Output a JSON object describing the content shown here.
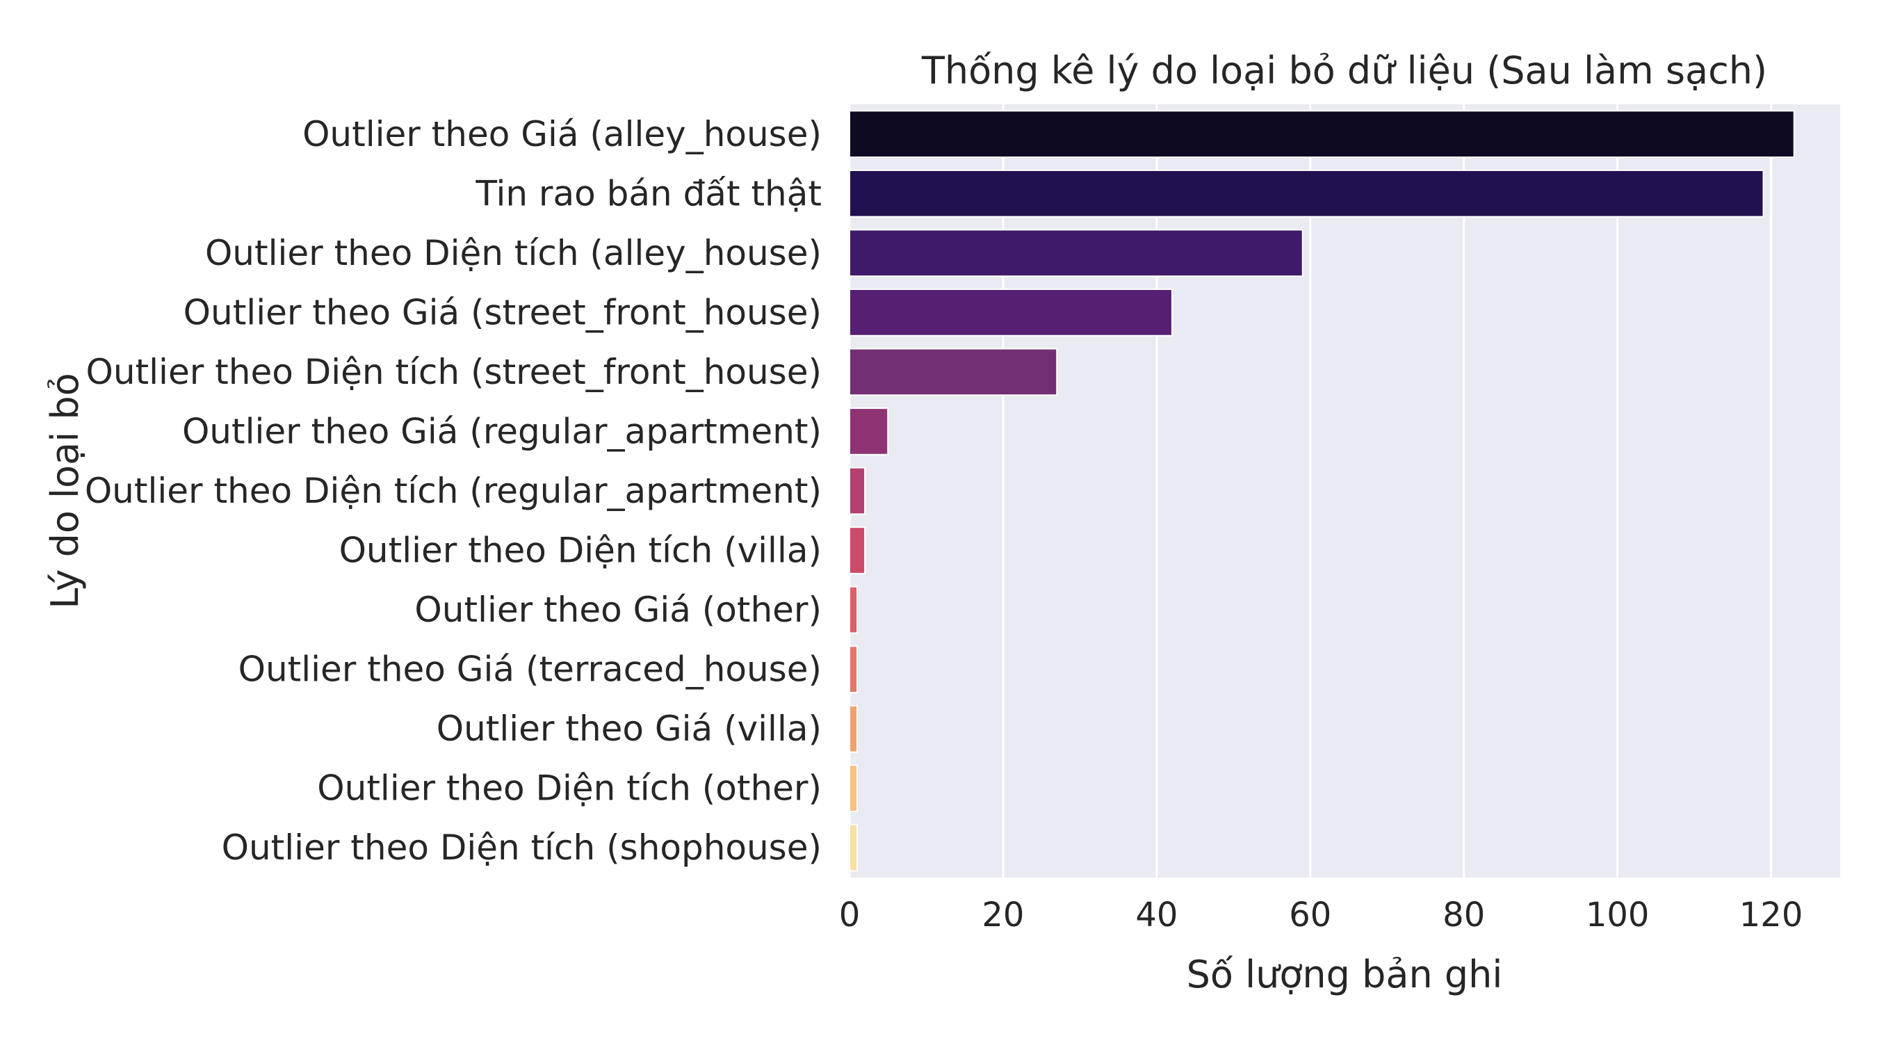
{
  "chart_data": {
    "type": "bar",
    "orientation": "horizontal",
    "title": "Thống kê lý do loại bỏ dữ liệu (Sau làm sạch)",
    "xlabel": "Số lượng bản ghi",
    "ylabel": "Lý do loại bỏ",
    "xlim": [
      0,
      129
    ],
    "xticks": [
      0,
      20,
      40,
      60,
      80,
      100,
      120
    ],
    "grid": true,
    "palette": "magma",
    "categories": [
      "Outlier theo Giá (alley_house)",
      "Tin rao bán đất thật",
      "Outlier theo Diện tích (alley_house)",
      "Outlier theo Giá (street_front_house)",
      "Outlier theo Diện tích (street_front_house)",
      "Outlier theo Giá (regular_apartment)",
      "Outlier theo Diện tích (regular_apartment)",
      "Outlier theo Diện tích (villa)",
      "Outlier theo Giá (other)",
      "Outlier theo Giá (terraced_house)",
      "Outlier theo Giá (villa)",
      "Outlier theo Diện tích (other)",
      "Outlier theo Diện tích (shophouse)"
    ],
    "values": [
      123,
      119,
      59,
      42,
      27,
      5,
      2,
      2,
      1,
      1,
      1,
      1,
      1
    ],
    "colors": [
      "#0d0a22",
      "#221150",
      "#3f1a6b",
      "#561f72",
      "#722f75",
      "#8e3475",
      "#b3406f",
      "#cc4b68",
      "#df5e65",
      "#e8756b",
      "#f1a06f",
      "#f8c07f",
      "#fbdfa3"
    ],
    "background_color": "#eaeaf2",
    "grid_color": "#ffffff"
  }
}
